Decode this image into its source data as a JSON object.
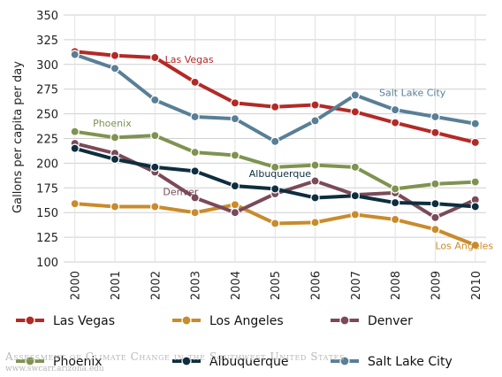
{
  "chart_data": {
    "type": "line",
    "title": "",
    "xlabel": "",
    "ylabel": "Gallons per capita per day",
    "categories": [
      "2000",
      "2001",
      "2002",
      "2003",
      "2004",
      "2005",
      "2006",
      "2007",
      "2008",
      "2009",
      "2010"
    ],
    "yticks": [
      100,
      125,
      150,
      175,
      200,
      225,
      250,
      275,
      300,
      325,
      350
    ],
    "ylim": [
      100,
      350
    ],
    "grid": true,
    "legend": "bottom",
    "series": [
      {
        "name": "Las Vegas",
        "color": "#b22a26",
        "values": [
          313,
          309,
          307,
          282,
          261,
          257,
          259,
          252,
          241,
          231,
          221
        ]
      },
      {
        "name": "Los Angeles",
        "color": "#c98b2b",
        "values": [
          159,
          156,
          156,
          150,
          158,
          139,
          140,
          148,
          143,
          133,
          117
        ]
      },
      {
        "name": "Denver",
        "color": "#7a4a58",
        "values": [
          220,
          210,
          191,
          165,
          150,
          169,
          182,
          168,
          170,
          145,
          163
        ]
      },
      {
        "name": "Phoenix",
        "color": "#7f9350",
        "values": [
          232,
          226,
          228,
          211,
          208,
          196,
          198,
          196,
          174,
          179,
          181
        ]
      },
      {
        "name": "Albuquerque",
        "color": "#0d2e3f",
        "values": [
          215,
          204,
          196,
          192,
          177,
          174,
          165,
          167,
          160,
          159,
          156
        ]
      },
      {
        "name": "Salt Lake City",
        "color": "#587f96",
        "values": [
          310,
          296,
          264,
          247,
          245,
          222,
          243,
          269,
          254,
          247,
          240
        ]
      }
    ],
    "annotations": [
      "Las Vegas",
      "Salt Lake City",
      "Phoenix",
      "Albuquerque",
      "Denver",
      "Los Angeles"
    ]
  },
  "watermark": {
    "line1": "Assessment of Climate Change in the Southwest United States",
    "line2": "www.swcarr.arizona.edu"
  }
}
